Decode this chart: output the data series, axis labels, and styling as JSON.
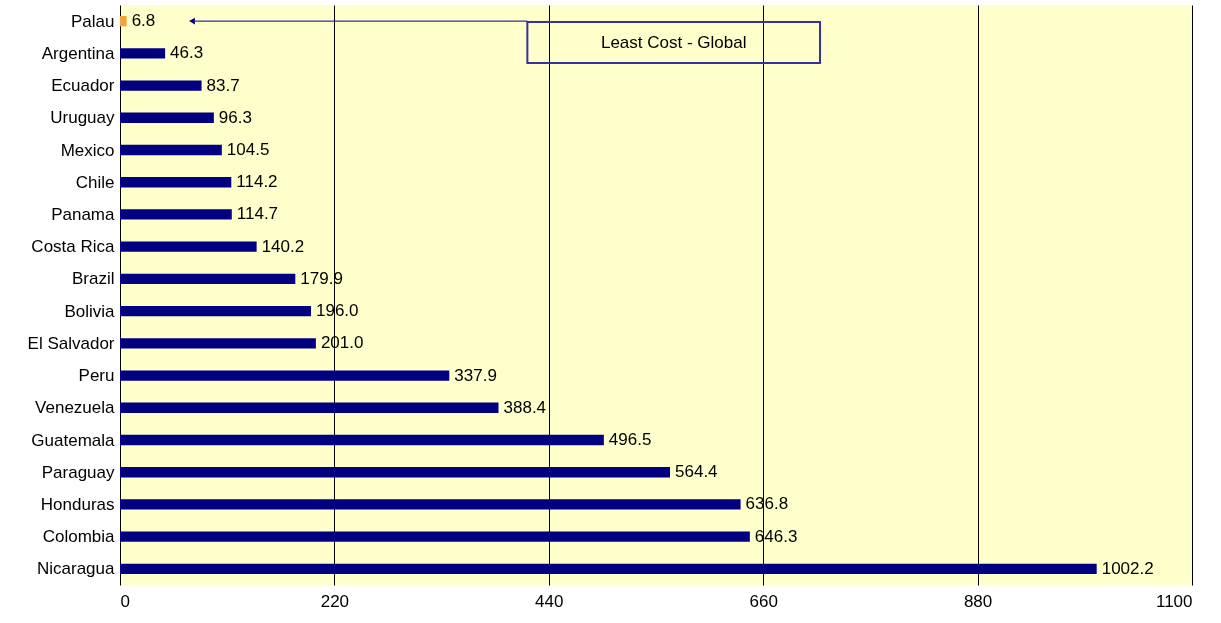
{
  "chart_data": {
    "type": "bar",
    "orientation": "horizontal",
    "categories": [
      "Palau",
      "Argentina",
      "Ecuador",
      "Uruguay",
      "Mexico",
      "Chile",
      "Panama",
      "Costa Rica",
      "Brazil",
      "Bolivia",
      "El Salvador",
      "Peru",
      "Venezuela",
      "Guatemala",
      "Paraguay",
      "Honduras",
      "Colombia",
      "Nicaragua"
    ],
    "values": [
      6.8,
      46.3,
      83.7,
      96.3,
      104.5,
      114.2,
      114.7,
      140.2,
      179.9,
      196.0,
      201.0,
      337.9,
      388.4,
      496.5,
      564.4,
      636.8,
      646.3,
      1002.2
    ],
    "value_labels": [
      "6.8",
      "46.3",
      "83.7",
      "96.3",
      "104.5",
      "114.2",
      "114.7",
      "140.2",
      "179.9",
      "196.0",
      "201.0",
      "337.9",
      "388.4",
      "496.5",
      "564.4",
      "636.8",
      "646.3",
      "1002.2"
    ],
    "colors": [
      "#f4a23a",
      "#000080",
      "#000080",
      "#000080",
      "#000080",
      "#000080",
      "#000080",
      "#000080",
      "#000080",
      "#000080",
      "#000080",
      "#000080",
      "#000080",
      "#000080",
      "#000080",
      "#000080",
      "#000080",
      "#000080"
    ],
    "xlim": [
      0,
      1100
    ],
    "xticks": [
      0,
      220,
      440,
      660,
      880,
      1100
    ],
    "grid": "x",
    "annotations": [
      "Least Cost - Global"
    ]
  }
}
